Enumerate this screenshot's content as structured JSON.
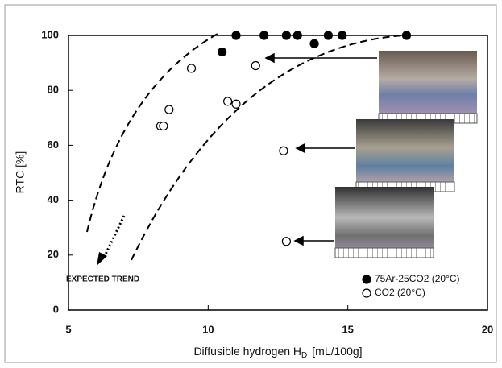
{
  "chart_data": {
    "type": "scatter",
    "xlabel": {
      "main": "Diffusible hydrogen H",
      "sub": "D",
      "unit": "[mL/100g]"
    },
    "ylabel": "RTC [%]",
    "annotation": "EXPECTED TREND",
    "xlim": [
      5,
      20
    ],
    "xticks": [
      5,
      10,
      15,
      20
    ],
    "ylim": [
      0,
      100
    ],
    "yticks": [
      0,
      20,
      40,
      60,
      80,
      100
    ],
    "grid": false,
    "legend": "lower right",
    "series": [
      {
        "name": "75Ar-25CO2 (20°C)",
        "color": "#000000",
        "filled": true,
        "x": [
          10.5,
          11.0,
          12.0,
          12.8,
          13.2,
          13.8,
          14.3,
          14.8,
          17.1
        ],
        "values": [
          94,
          100,
          100,
          100,
          100,
          97,
          100,
          100,
          100
        ]
      },
      {
        "name": "CO2 (20°C)",
        "color": "#000000",
        "filled": false,
        "x": [
          9.4,
          8.6,
          8.3,
          8.4,
          10.7,
          11.0,
          11.7,
          12.7,
          12.8
        ],
        "values": [
          88,
          73,
          67,
          67,
          76,
          75,
          89,
          58,
          25
        ]
      }
    ]
  }
}
